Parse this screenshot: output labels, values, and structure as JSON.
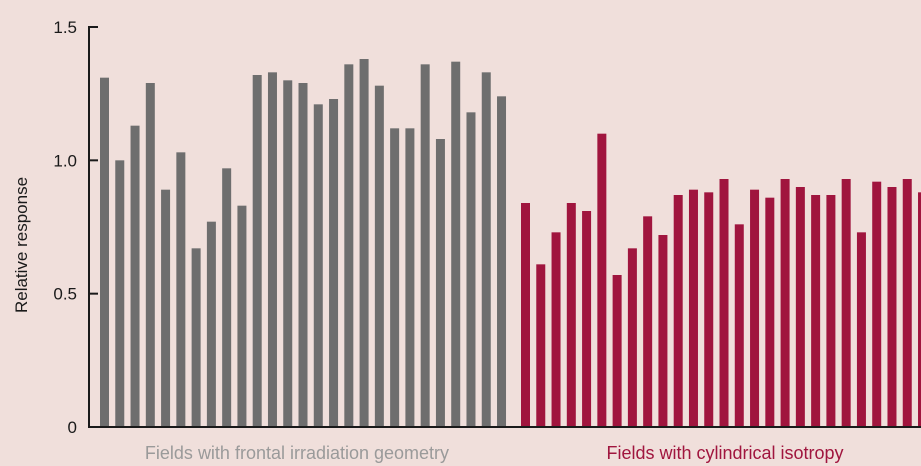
{
  "chart_data": {
    "type": "bar",
    "ylabel": "Relative response",
    "ylim": [
      0,
      1.5
    ],
    "yticks": [
      {
        "value": 0,
        "label": "0"
      },
      {
        "value": 0.5,
        "label": "0.5"
      },
      {
        "value": 1.0,
        "label": "1.0"
      },
      {
        "value": 1.5,
        "label": "1.5"
      }
    ],
    "grid": false,
    "series": [
      {
        "name": "Fields with frontal irradiation geometry",
        "color": "#6e6e6e",
        "label_color": "#9a9a9a",
        "values": [
          1.31,
          1.0,
          1.13,
          1.29,
          0.89,
          1.03,
          0.67,
          0.77,
          0.97,
          0.83,
          1.32,
          1.33,
          1.3,
          1.29,
          1.21,
          1.23,
          1.36,
          1.38,
          1.28,
          1.12,
          1.12,
          1.36,
          1.08,
          1.37,
          1.18,
          1.33,
          1.24
        ]
      },
      {
        "name": "Fields with cylindrical isotropy",
        "color": "#a0153e",
        "label_color": "#a0153e",
        "values": [
          0.84,
          0.61,
          0.73,
          0.84,
          0.81,
          1.1,
          0.57,
          0.67,
          0.79,
          0.72,
          0.87,
          0.89,
          0.88,
          0.93,
          0.76,
          0.89,
          0.86,
          0.93,
          0.9,
          0.87,
          0.87,
          0.93,
          0.73,
          0.92,
          0.9,
          0.93,
          0.88
        ]
      }
    ]
  }
}
